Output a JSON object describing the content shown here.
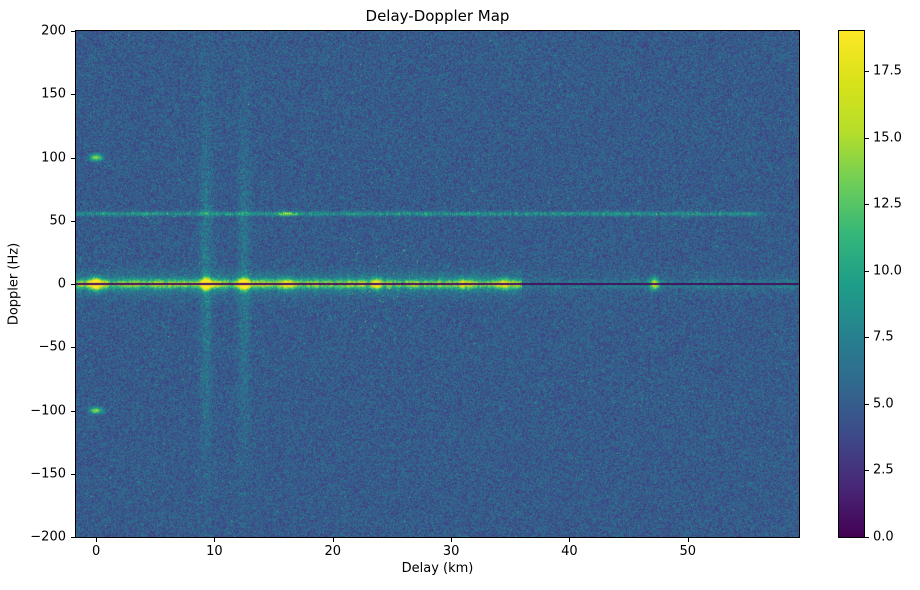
{
  "chart_data": {
    "type": "heatmap",
    "title": "Delay-Doppler Map",
    "xlabel": "Delay (km)",
    "ylabel": "Doppler (Hz)",
    "xlim": [
      -1.7,
      59.4
    ],
    "ylim": [
      -200,
      200
    ],
    "xticks": [
      0,
      10,
      20,
      30,
      40,
      50
    ],
    "yticks": [
      200,
      150,
      100,
      50,
      0,
      -50,
      -100,
      -150,
      -200
    ],
    "colormap": "viridis",
    "background": "#ffffff",
    "text_color": "#000000",
    "colorbar": {
      "vmin": 0.0,
      "vmax": 19.0,
      "ticks": [
        0.0,
        2.5,
        5.0,
        7.5,
        10.0,
        12.5,
        15.0,
        17.5
      ]
    },
    "background_noise": {
      "min": 2.8,
      "max": 7.0,
      "seed": 1337
    },
    "features": {
      "zero_doppler_ridge": {
        "doppler_hz": 0,
        "extent_bright_km": [
          -1.7,
          36
        ],
        "base_intensity": [
          4.5,
          11.5
        ],
        "dark_centerline_halfwidth_hz": 0.9,
        "peaks": [
          {
            "delay_km": 0.0,
            "amp": 15,
            "sigma_km": 0.35
          },
          {
            "delay_km": 9.3,
            "amp": 15,
            "sigma_km": 0.3
          },
          {
            "delay_km": 12.5,
            "amp": 15,
            "sigma_km": 0.3
          },
          {
            "delay_km": 16.2,
            "amp": 6,
            "sigma_km": 0.4
          },
          {
            "delay_km": 23.7,
            "amp": 8,
            "sigma_km": 0.25
          },
          {
            "delay_km": 31.0,
            "amp": 6,
            "sigma_km": 0.3
          },
          {
            "delay_km": 34.5,
            "amp": 5,
            "sigma_km": 0.3
          },
          {
            "delay_km": 47.2,
            "amp": 11,
            "sigma_km": 0.25
          }
        ]
      },
      "clutter_line": {
        "doppler_hz": 55.5,
        "delay_end_km": 55,
        "intensity": [
          3,
          7
        ],
        "bright_spot": {
          "delay_km": 16.2,
          "amp": 8
        }
      },
      "doppler_ambiguity_spots": [
        {
          "delay_km": 0,
          "doppler_hz": 100,
          "amp": 9
        },
        {
          "delay_km": 0,
          "doppler_hz": -100,
          "amp": 9
        }
      ],
      "vertical_streaks": [
        {
          "delay_km": 9.3,
          "amp": 2.6
        },
        {
          "delay_km": 12.5,
          "amp": 2.2
        }
      ],
      "speckle_cluster": {
        "delay_range_km": [
          21.5,
          28.5
        ],
        "doppler_range_hz": [
          -40,
          30
        ],
        "density": 0.01,
        "amp": [
          4,
          8
        ]
      }
    }
  }
}
